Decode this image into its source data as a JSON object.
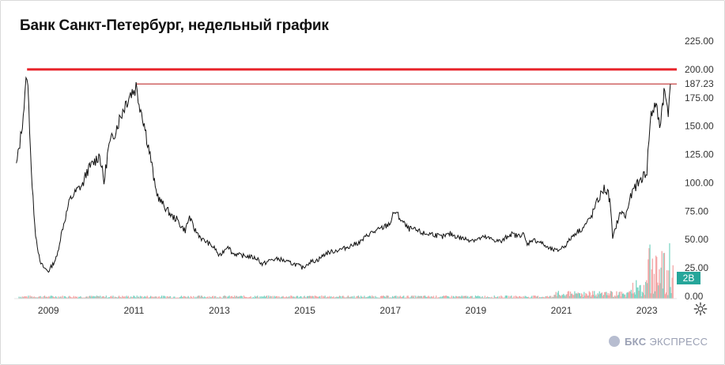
{
  "title": "Банк Санкт-Петербург, недельный график",
  "brand": {
    "bold": "БКС",
    "text": "ЭКСПРЕСС"
  },
  "volume_badge": "2B",
  "last_price_label": "187.23",
  "colors": {
    "price": "#111111",
    "resistance_major": "#e8232a",
    "resistance_minor": "#b81c1c",
    "volume_up": "#7fd6c6",
    "volume_down": "#f4a7a7",
    "badge": "#26a69a"
  },
  "chart_data": {
    "type": "line",
    "title": "Банк Санкт-Петербург, недельный график",
    "xlabel": "",
    "ylabel": "",
    "ylim": [
      0,
      225
    ],
    "yticks": [
      "0.00",
      "25.00",
      "50.00",
      "75.00",
      "100.00",
      "125.00",
      "150.00",
      "175.00",
      "200.00",
      "225.00"
    ],
    "xticks": [
      "2009",
      "2011",
      "2013",
      "2015",
      "2017",
      "2019",
      "2021",
      "2023"
    ],
    "xlim": [
      2008.2,
      2023.7
    ],
    "grid": false,
    "horizontal_lines": [
      {
        "value": 200,
        "from": 2008.5,
        "label": ""
      },
      {
        "value": 187.23,
        "from": 2011.05,
        "label": "187.23"
      }
    ],
    "series": [
      {
        "x": [
          2008.25,
          2008.35,
          2008.45,
          2008.5,
          2008.56,
          2008.62,
          2008.7,
          2008.8,
          2008.9,
          2009.0,
          2009.1,
          2009.2,
          2009.3,
          2009.4,
          2009.5,
          2009.6,
          2009.7,
          2009.8,
          2009.9,
          2010.0,
          2010.1,
          2010.2,
          2010.3,
          2010.4,
          2010.5,
          2010.6,
          2010.7,
          2010.8,
          2010.9,
          2011.0,
          2011.05,
          2011.1,
          2011.2,
          2011.3,
          2011.4,
          2011.5,
          2011.6,
          2011.7,
          2011.8,
          2011.9,
          2012.0,
          2012.1,
          2012.2,
          2012.3,
          2012.4,
          2012.5,
          2012.6,
          2012.7,
          2012.8,
          2012.9,
          2013.0,
          2013.1,
          2013.2,
          2013.3,
          2013.5,
          2013.7,
          2013.9,
          2014.0,
          2014.2,
          2014.4,
          2014.6,
          2014.8,
          2014.95,
          2015.1,
          2015.3,
          2015.5,
          2015.7,
          2015.9,
          2016.1,
          2016.3,
          2016.5,
          2016.7,
          2016.9,
          2017.0,
          2017.1,
          2017.2,
          2017.4,
          2017.6,
          2017.8,
          2018.0,
          2018.2,
          2018.4,
          2018.6,
          2018.8,
          2019.0,
          2019.2,
          2019.4,
          2019.6,
          2019.8,
          2020.0,
          2020.1,
          2020.2,
          2020.3,
          2020.5,
          2020.7,
          2020.9,
          2021.1,
          2021.3,
          2021.5,
          2021.7,
          2021.8,
          2021.9,
          2022.0,
          2022.1,
          2022.15,
          2022.2,
          2022.3,
          2022.4,
          2022.5,
          2022.6,
          2022.7,
          2022.8,
          2022.9,
          2023.0,
          2023.05,
          2023.1,
          2023.2,
          2023.3,
          2023.35,
          2023.4,
          2023.5,
          2023.55
        ],
        "values": [
          115,
          140,
          175,
          198,
          150,
          95,
          55,
          30,
          25,
          22,
          28,
          35,
          55,
          70,
          85,
          90,
          95,
          98,
          110,
          115,
          120,
          125,
          100,
          130,
          140,
          150,
          160,
          170,
          178,
          182,
          185,
          175,
          160,
          140,
          120,
          95,
          85,
          80,
          75,
          70,
          68,
          62,
          58,
          70,
          60,
          55,
          50,
          48,
          45,
          42,
          35,
          40,
          45,
          38,
          36,
          35,
          33,
          28,
          32,
          33,
          30,
          28,
          25,
          30,
          32,
          38,
          40,
          42,
          45,
          48,
          55,
          58,
          62,
          65,
          75,
          70,
          60,
          58,
          55,
          55,
          52,
          55,
          52,
          50,
          50,
          52,
          50,
          48,
          55,
          53,
          56,
          45,
          50,
          48,
          42,
          40,
          45,
          55,
          60,
          70,
          80,
          88,
          95,
          90,
          80,
          50,
          65,
          75,
          70,
          85,
          95,
          100,
          105,
          110,
          140,
          160,
          170,
          150,
          165,
          180,
          165,
          187
        ]
      }
    ]
  }
}
